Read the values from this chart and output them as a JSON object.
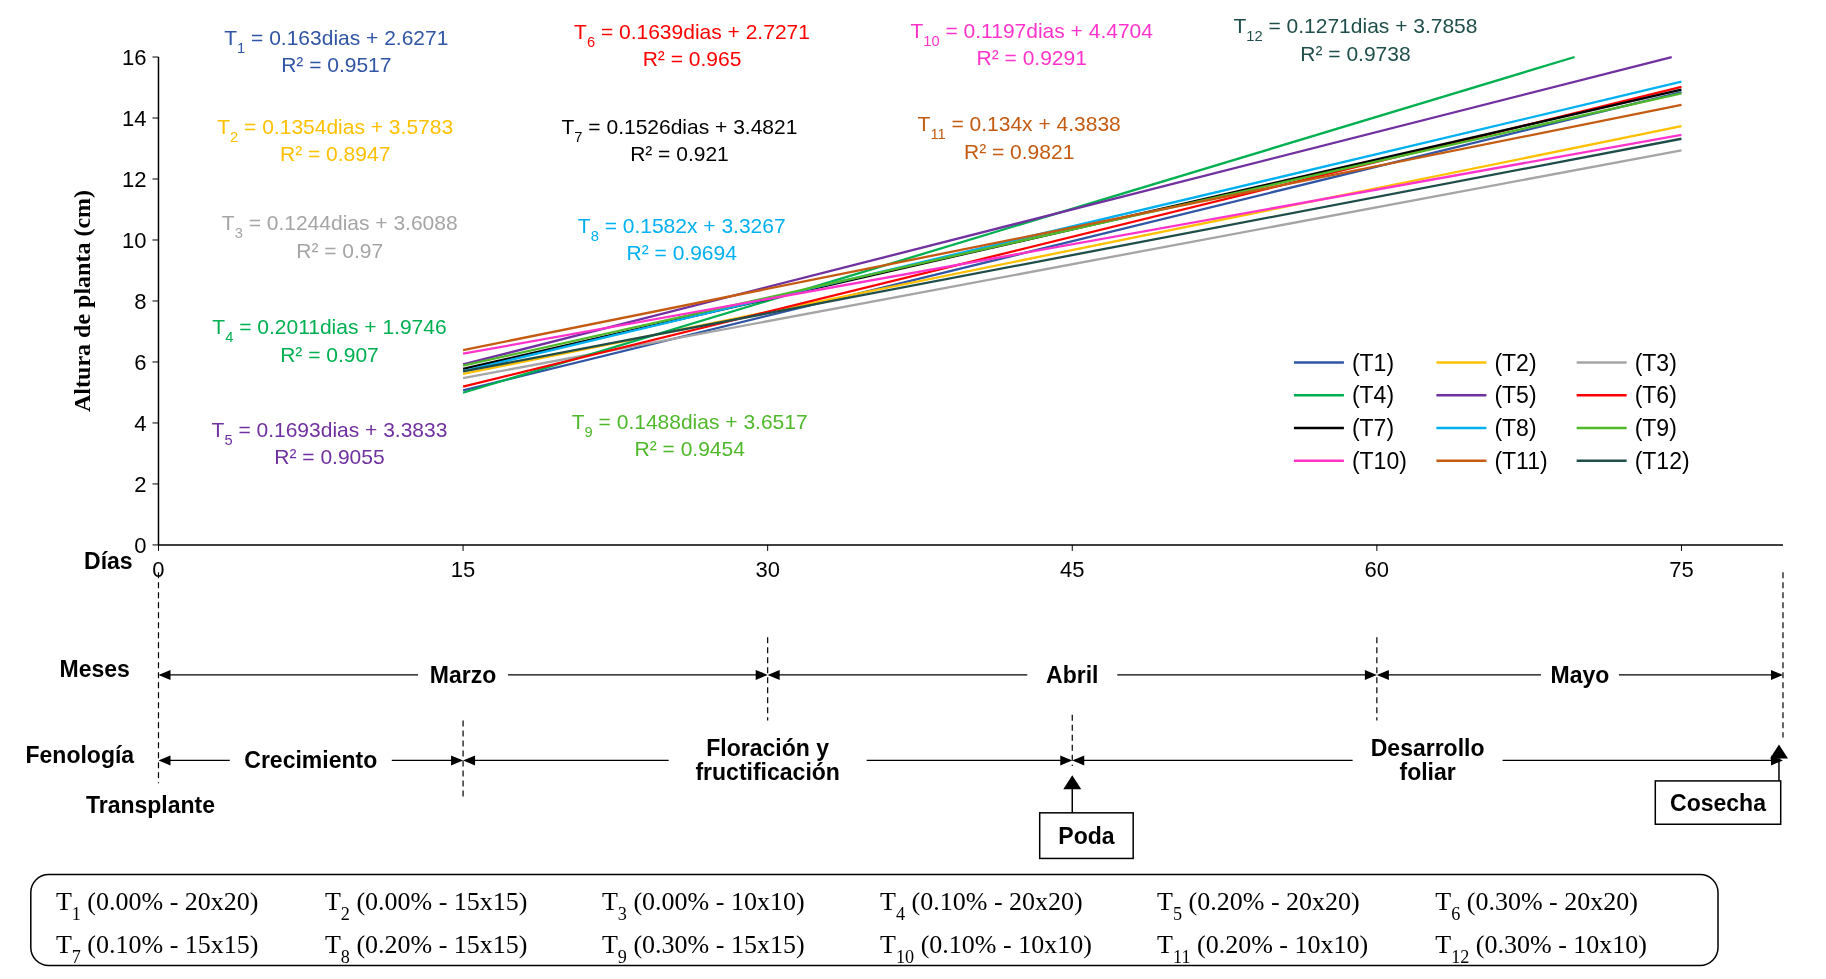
{
  "chart_data": {
    "type": "line",
    "xlabel": "Días",
    "ylabel": "Altura de planta (cm)",
    "xlim": [
      0,
      80
    ],
    "xticks": [
      0,
      15,
      30,
      45,
      60,
      75
    ],
    "ylim": [
      0,
      16
    ],
    "yticks": [
      0,
      2,
      4,
      6,
      8,
      10,
      12,
      14,
      16
    ],
    "legend": "right",
    "marker": "none",
    "line_style": "solid",
    "series": [
      {
        "name": "(T1)",
        "color": "#2f55a4",
        "x": [
          15,
          75
        ],
        "values": [
          5.07,
          14.85
        ]
      },
      {
        "name": "(T2)",
        "color": "#ffc000",
        "x": [
          15,
          75
        ],
        "values": [
          5.61,
          13.73
        ]
      },
      {
        "name": "(T3)",
        "color": "#a5a5a5",
        "x": [
          15,
          75
        ],
        "values": [
          5.47,
          12.94
        ]
      },
      {
        "name": "(T4)",
        "color": "#00b050",
        "x": [
          15,
          69.74
        ],
        "values": [
          4.99,
          16
        ]
      },
      {
        "name": "(T5)",
        "color": "#7030a0",
        "x": [
          15,
          74.52
        ],
        "values": [
          5.92,
          16
        ]
      },
      {
        "name": "(T6)",
        "color": "#ff0000",
        "x": [
          15,
          75
        ],
        "values": [
          5.19,
          15.02
        ]
      },
      {
        "name": "(T7)",
        "color": "#000000",
        "x": [
          15,
          75
        ],
        "values": [
          5.77,
          14.93
        ]
      },
      {
        "name": "(T8)",
        "color": "#00b0f0",
        "x": [
          15,
          75
        ],
        "values": [
          5.7,
          15.19
        ]
      },
      {
        "name": "(T9)",
        "color": "#4fb82b",
        "x": [
          15,
          75
        ],
        "values": [
          5.88,
          14.81
        ]
      },
      {
        "name": "(T10)",
        "color": "#ff33cc",
        "x": [
          15,
          75
        ],
        "values": [
          6.27,
          13.45
        ]
      },
      {
        "name": "(T11)",
        "color": "#c55a11",
        "x": [
          15,
          75
        ],
        "values": [
          6.39,
          14.43
        ]
      },
      {
        "name": "(T12)",
        "color": "#1f4e4a",
        "x": [
          15,
          75
        ],
        "values": [
          5.69,
          13.32
        ]
      }
    ],
    "annotations": [
      "T$_{1}$ = 0.163dias + 2.6271",
      "R² = 0.9517",
      "T$_{2}$ = 0.1354dias + 3.5783",
      "R² = 0.8947",
      "T$_{3}$ = 0.1244dias + 3.6088",
      "R² = 0.97",
      "T$_{4}$ = 0.2011dias + 1.9746",
      "R² = 0.907",
      "T$_{5}$ = 0.1693dias + 3.3833",
      "R² = 0.9055",
      "T$_{6}$ = 0.1639dias + 2.7271",
      "R² = 0.965",
      "T$_{7}$ = 0.1526dias + 3.4821",
      "R² = 0.921",
      "T$_{8}$ = 0.1582x + 3.3267",
      "R² = 0.9694",
      "T$_{9}$ = 0.1488dias + 3.6517",
      "R² = 0.9454",
      "T$_{10}$ = 0.1197dias + 4.4704",
      "R² = 0.9291",
      "T$_{11}$ = 0.134x + 4.3838",
      "R² = 0.9821",
      "T$_{12}$ = 0.1271dias + 3.7858",
      "R² = 0.9738",
      "Meses",
      "Marzo",
      "Abril",
      "Mayo",
      "Fenología",
      "Crecimiento",
      "Floración y\nfructificación",
      "Desarrollo\nfoliar",
      "Transplante",
      "Poda",
      "Cosecha",
      "T$_{1}$ (0.00% - 20x20)",
      "T$_{2}$ (0.00% - 15x15)",
      "T$_{3}$ (0.00% - 10x10)",
      "T$_{4}$ (0.10% - 20x20)",
      "T$_{5}$ (0.20% - 20x20)",
      "T$_{6}$ (0.30% - 20x20)",
      "T$_{7}$ (0.10% - 15x15)",
      "T$_{8}$ (0.20% - 15x15)",
      "T$_{9}$ (0.30% - 15x15)",
      "T$_{10}$ (0.10% - 10x10)",
      "T$_{11}$ (0.20% - 10x10)",
      "T$_{12}$ (0.30% - 10x10)"
    ]
  }
}
